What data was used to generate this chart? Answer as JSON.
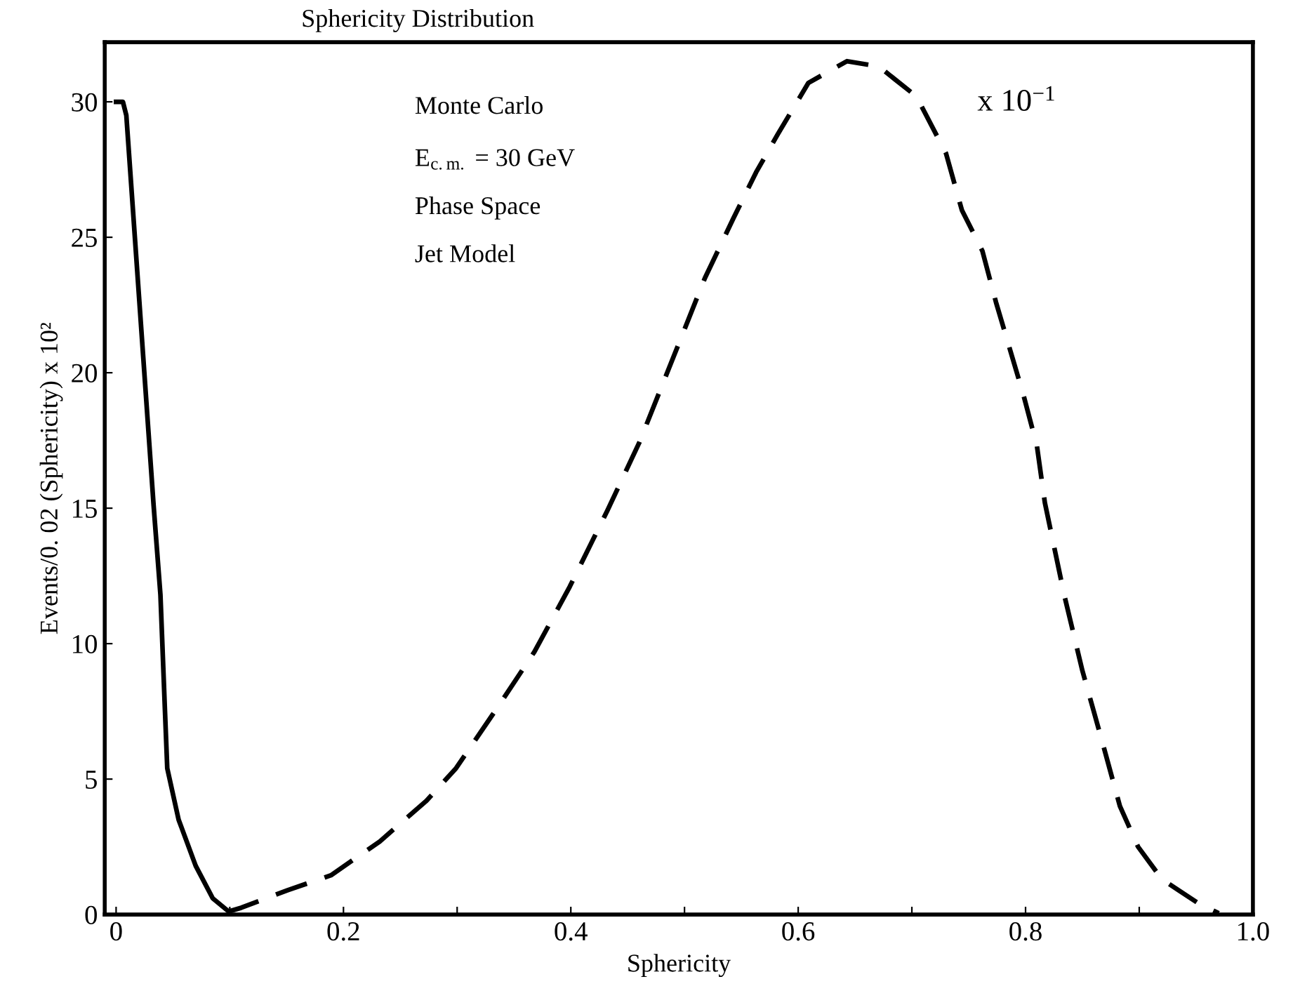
{
  "chart_data": {
    "type": "line",
    "title": "Sphericity Distribution",
    "xlabel": "Sphericity",
    "ylabel": "Events/0. 02 (Sphericity) x 10²",
    "annotations": [
      "Monte Carlo",
      "E$_{c.m.}$ = 30 GeV",
      "Phase Space",
      "Jet Model",
      "x 10$^{−1}$"
    ],
    "xlim": [
      -0.01,
      1.0
    ],
    "ylim": [
      0,
      32.2
    ],
    "xticks": [
      {
        "value": 0,
        "label": "0"
      },
      {
        "value": 0.1,
        "label": null
      },
      0.2,
      {
        "value": 0.3,
        "label": null
      },
      0.4,
      {
        "value": 0.5,
        "label": null
      },
      0.6,
      {
        "value": 0.7,
        "label": null
      },
      0.8,
      {
        "value": 0.9,
        "label": null
      },
      {
        "value": 1.0,
        "label": "1.0"
      }
    ],
    "yticks": [
      0,
      5,
      10,
      15,
      20,
      25,
      30
    ],
    "grid": false,
    "series": [
      {
        "color": "#000000",
        "line_style": "solid",
        "x": [
          0,
          0.006,
          0.009,
          0.033,
          0.039,
          0.043,
          0.045,
          0.055,
          0.07,
          0.085,
          0.098
        ],
        "values": [
          30,
          30,
          29.5,
          15.1,
          11.8,
          7.5,
          5.4,
          3.5,
          1.8,
          0.6,
          0.15
        ]
      },
      {
        "color": "#000000",
        "line_style": "dashed",
        "x": [
          0.098,
          0.11,
          0.151,
          0.189,
          0.232,
          0.273,
          0.299,
          0.338,
          0.368,
          0.399,
          0.432,
          0.46,
          0.48,
          0.518,
          0.543,
          0.563,
          0.582,
          0.609,
          0.643,
          0.671,
          0.704,
          0.73,
          0.744,
          0.762,
          0.774,
          0.798,
          0.81,
          0.817,
          0.822,
          0.834,
          0.85,
          0.866,
          0.883,
          0.899,
          0.92,
          0.954,
          0.97
        ],
        "values": [
          0.1,
          0.25,
          0.9,
          1.45,
          2.7,
          4.2,
          5.4,
          7.8,
          9.7,
          12.1,
          14.9,
          17.4,
          19.5,
          23.5,
          25.7,
          27.4,
          28.8,
          30.7,
          31.5,
          31.3,
          30.2,
          28.1,
          26.0,
          24.5,
          22.6,
          19.2,
          17.3,
          15.2,
          14.2,
          11.8,
          9.0,
          6.6,
          4.0,
          2.5,
          1.3,
          0.36,
          0.05
        ]
      }
    ]
  }
}
